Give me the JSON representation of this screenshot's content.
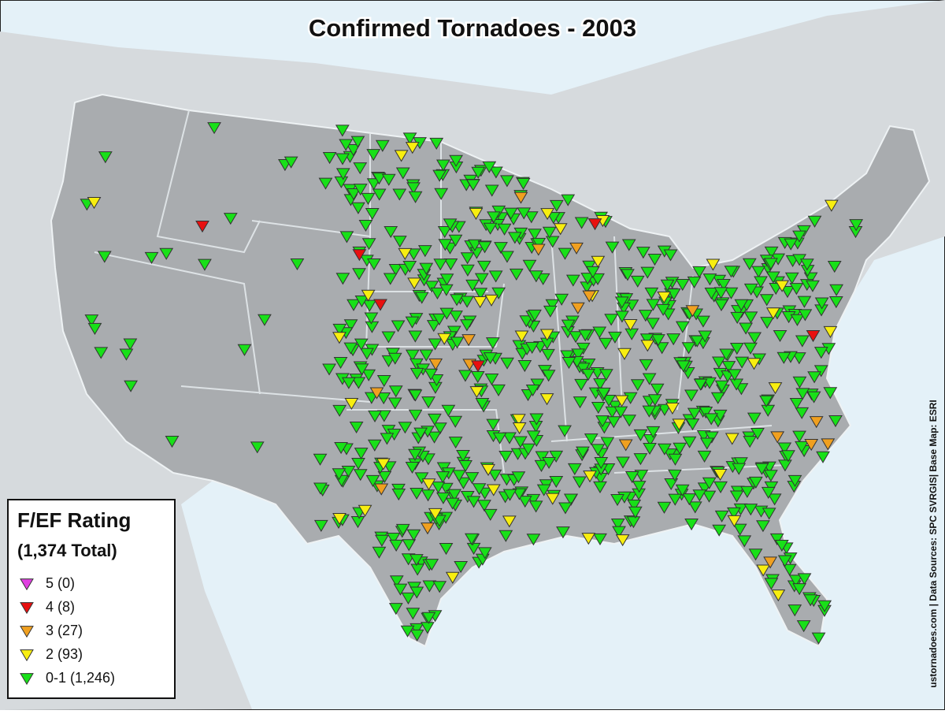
{
  "title": "Confirmed Tornadoes - 2003",
  "legend": {
    "title": "F/EF Rating",
    "total": "(1,374 Total)",
    "items": [
      {
        "label": "5 (0)",
        "color": "#e040e0"
      },
      {
        "label": "4 (8)",
        "color": "#e81010"
      },
      {
        "label": "3 (27)",
        "color": "#f0a020"
      },
      {
        "label": "2 (93)",
        "color": "#f8ee10"
      },
      {
        "label": "0-1 (1,246)",
        "color": "#18e018"
      }
    ]
  },
  "credit": "ustornadoes.com | Data Sources: SPC SVRGIS| Base Map: ESRI"
}
